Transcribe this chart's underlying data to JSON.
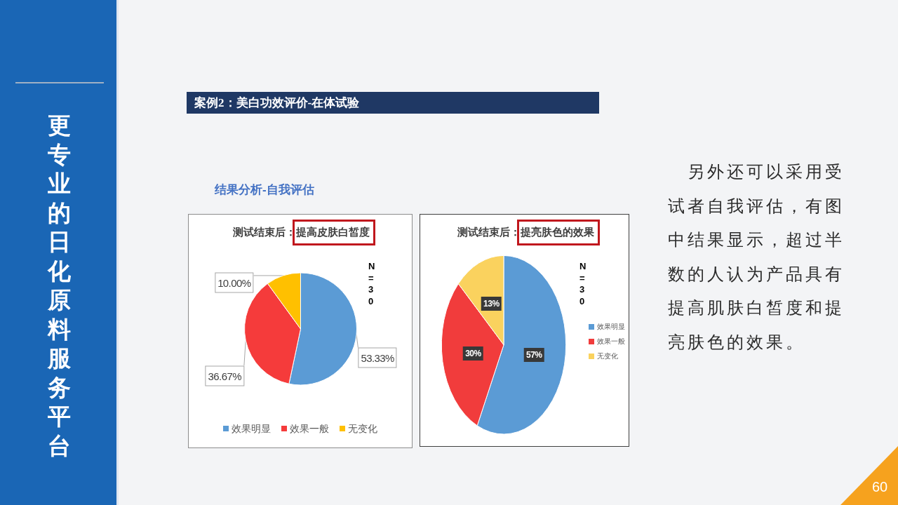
{
  "chart_data": [
    {
      "type": "other",
      "title": "案例2：美白功效评价-在体试验",
      "subtitle": "结果分析-自我评估",
      "annotations": [
        "更专业的日化原料服务平台",
        "另外还可以采用受试者自我评估，有图中结果显示，超过半数的人认为产品具有提高肌肤白皙度和提亮肤色的效果。",
        "60"
      ]
    },
    {
      "type": "pie",
      "title": "测试结束后：提高皮肤白皙度",
      "categories": [
        "效果明显",
        "效果一般",
        "无变化"
      ],
      "values": [
        53.33,
        36.67,
        10.0
      ],
      "value_labels": [
        "53.33%",
        "36.67%",
        "10.00%"
      ],
      "colors": [
        "#5b9bd5",
        "#f53b3b",
        "#ffc000"
      ],
      "legend": "bottom",
      "annotations": [
        "N=30"
      ]
    },
    {
      "type": "pie",
      "title": "测试结束后：提亮肤色的效果",
      "categories": [
        "效果明显",
        "效果一般",
        "无变化"
      ],
      "values": [
        57,
        30,
        13
      ],
      "value_labels": [
        "57%",
        "30%",
        "13%"
      ],
      "colors": [
        "#5b9bd5",
        "#f13c3c",
        "#fad25e"
      ],
      "legend": "right",
      "annotations": [
        "N=30"
      ]
    }
  ]
}
